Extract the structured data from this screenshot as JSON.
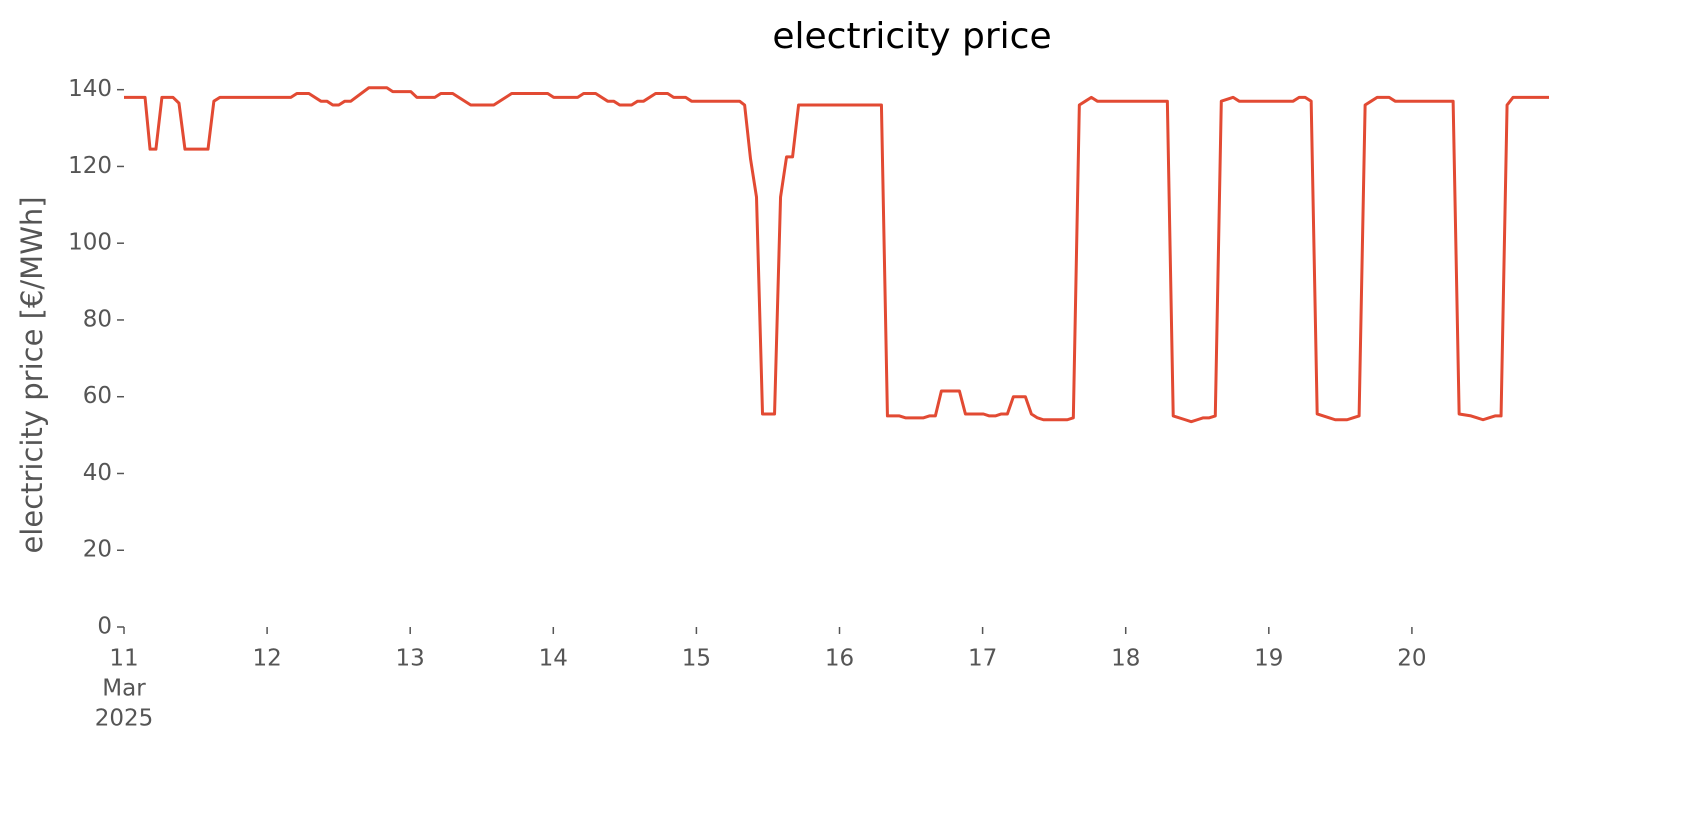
{
  "chart_data": {
    "type": "line",
    "title": "electricity price",
    "ylabel": "electricity price [€/MWh]",
    "color": "#e24a33",
    "xlim": [
      11,
      20.958
    ],
    "ylim": [
      0,
      142
    ],
    "yticks": [
      0,
      20,
      40,
      60,
      80,
      100,
      120,
      140
    ],
    "xticks": [
      {
        "value": 11,
        "label": "11"
      },
      12,
      13,
      14,
      15,
      16,
      17,
      18,
      19,
      20
    ],
    "xtick_sublabels": [
      "Mar",
      "2025"
    ],
    "grid": false,
    "x": [
      11,
      11.147,
      11.182,
      11.223,
      11.265,
      11.342,
      11.384,
      11.426,
      11.587,
      11.628,
      11.67,
      12.166,
      12.208,
      12.292,
      12.376,
      12.418,
      12.459,
      12.501,
      12.543,
      12.585,
      12.711,
      12.837,
      12.878,
      13.004,
      13.046,
      13.172,
      13.214,
      13.297,
      13.423,
      13.584,
      13.709,
      13.961,
      14.003,
      14.17,
      14.212,
      14.296,
      14.38,
      14.422,
      14.464,
      14.547,
      14.589,
      14.631,
      14.715,
      14.799,
      14.841,
      14.925,
      14.966,
      15.302,
      15.337,
      15.378,
      15.42,
      15.462,
      15.546,
      15.588,
      15.63,
      15.672,
      15.714,
      16.293,
      16.335,
      16.419,
      16.461,
      16.587,
      16.628,
      16.67,
      16.712,
      16.838,
      16.88,
      17.006,
      17.047,
      17.089,
      17.131,
      17.173,
      17.215,
      17.299,
      17.341,
      17.383,
      17.425,
      17.592,
      17.634,
      17.676,
      17.718,
      17.76,
      17.802,
      18.291,
      18.332,
      18.416,
      18.458,
      18.5,
      18.542,
      18.584,
      18.626,
      18.668,
      18.751,
      18.793,
      19.17,
      19.212,
      19.254,
      19.296,
      19.338,
      19.422,
      19.464,
      19.547,
      19.589,
      19.631,
      19.673,
      19.715,
      19.757,
      19.841,
      19.883,
      20.288,
      20.33,
      20.413,
      20.455,
      20.497,
      20.539,
      20.581,
      20.623,
      20.665,
      20.707,
      20.958
    ],
    "values": [
      138,
      138,
      124.5,
      124.5,
      138,
      138,
      136.5,
      124.5,
      124.5,
      137,
      138,
      138,
      139,
      139,
      137,
      137,
      136,
      136,
      137,
      137,
      140.5,
      140.5,
      139.5,
      139.5,
      138,
      138,
      139,
      139,
      136,
      136,
      139,
      139,
      138,
      138,
      139,
      139,
      137,
      137,
      136,
      136,
      137,
      137,
      139,
      139,
      138,
      138,
      137,
      137,
      136,
      122,
      112,
      55.5,
      55.5,
      112,
      122.5,
      122.5,
      136,
      136,
      55,
      55,
      54.5,
      54.5,
      55,
      55,
      61.5,
      61.5,
      55.5,
      55.5,
      55,
      55,
      55.5,
      55.5,
      60,
      60,
      55.5,
      54.5,
      54,
      54,
      54.5,
      136,
      137,
      138,
      137,
      137,
      55,
      54,
      53.5,
      54,
      54.5,
      54.5,
      55,
      137,
      138,
      137,
      137,
      138,
      138,
      137,
      55.5,
      54.5,
      54,
      54,
      54.5,
      55,
      136,
      137,
      138,
      138,
      137,
      137,
      55.5,
      55,
      54.5,
      54,
      54.5,
      55,
      55,
      136,
      138,
      138
    ]
  }
}
